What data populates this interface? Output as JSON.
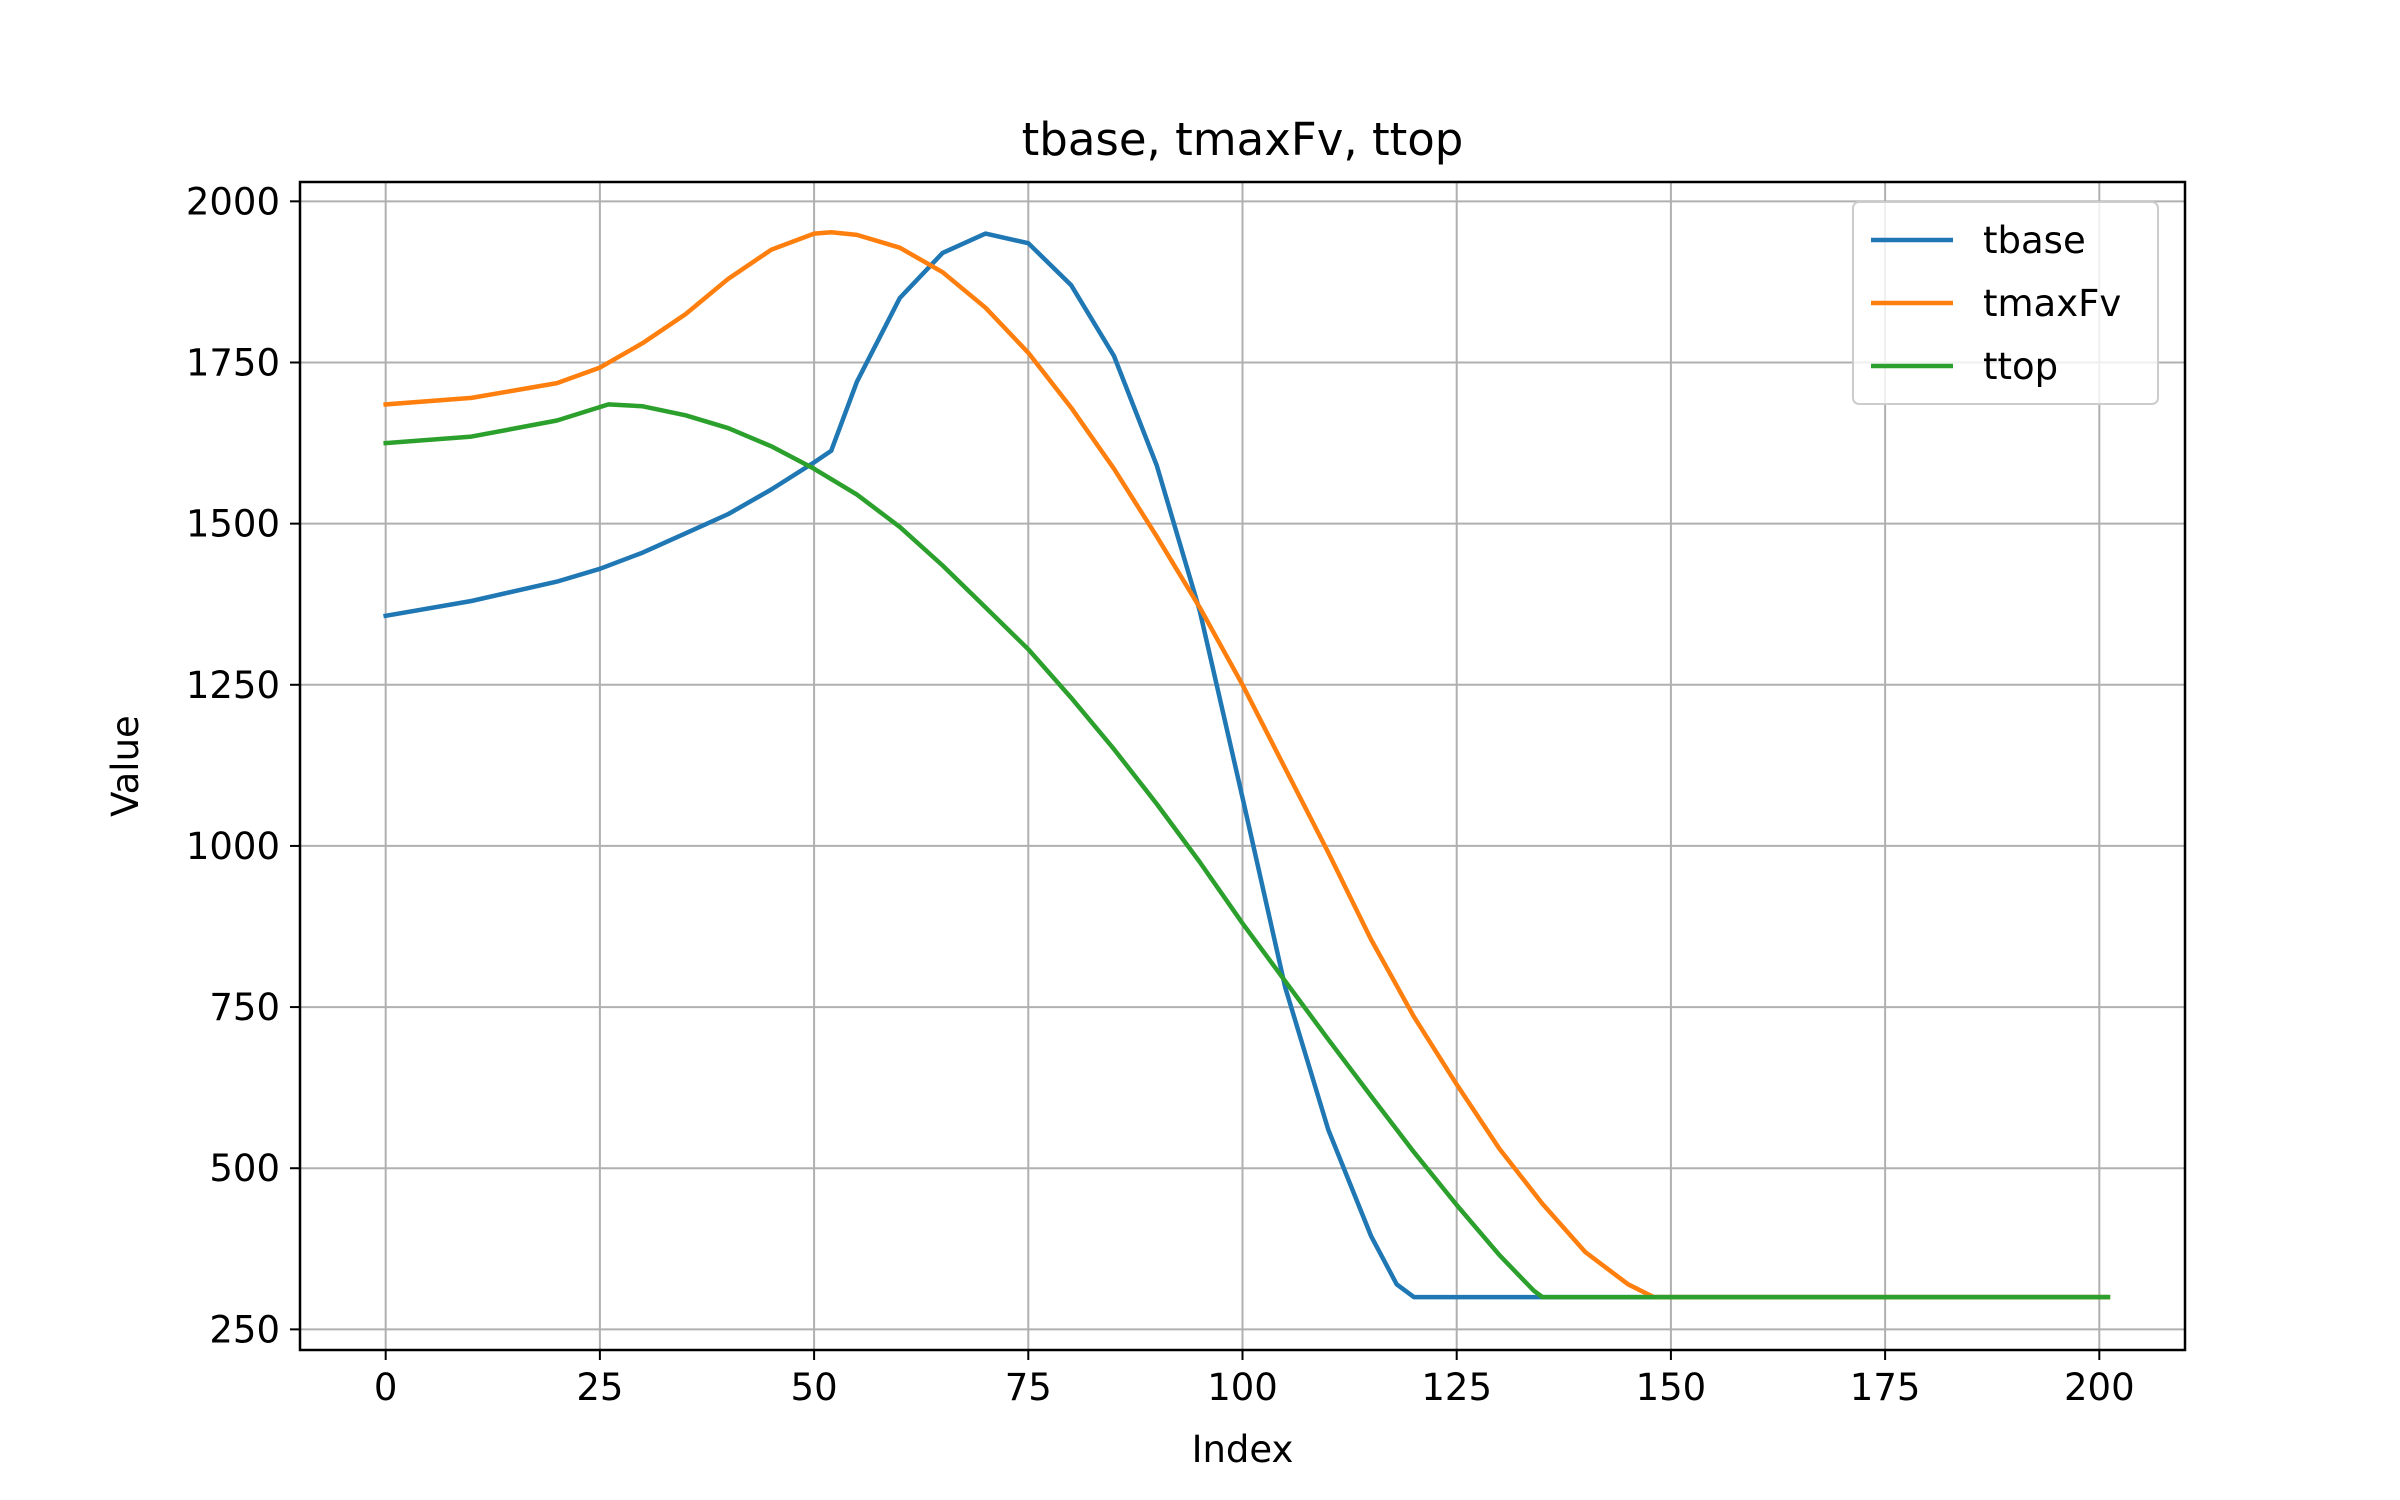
{
  "chart_data": {
    "type": "line",
    "title": "tbase, tmaxFv, ttop",
    "xlabel": "Index",
    "ylabel": "Value",
    "xlim": [
      -10,
      210
    ],
    "ylim": [
      218,
      2030
    ],
    "xticks": [
      0,
      25,
      50,
      75,
      100,
      125,
      150,
      175,
      200
    ],
    "yticks": [
      250,
      500,
      750,
      1000,
      1250,
      1500,
      1750,
      2000
    ],
    "grid": true,
    "legend_position": "upper right",
    "series": [
      {
        "name": "tbase",
        "color": "#1f77b4",
        "points": [
          [
            0,
            1357
          ],
          [
            10,
            1380
          ],
          [
            20,
            1410
          ],
          [
            25,
            1430
          ],
          [
            30,
            1455
          ],
          [
            35,
            1485
          ],
          [
            40,
            1515
          ],
          [
            45,
            1553
          ],
          [
            50,
            1595
          ],
          [
            52,
            1613
          ],
          [
            55,
            1720
          ],
          [
            60,
            1850
          ],
          [
            65,
            1920
          ],
          [
            70,
            1950
          ],
          [
            75,
            1935
          ],
          [
            80,
            1870
          ],
          [
            85,
            1760
          ],
          [
            90,
            1590
          ],
          [
            95,
            1365
          ],
          [
            100,
            1075
          ],
          [
            105,
            780
          ],
          [
            110,
            560
          ],
          [
            115,
            395
          ],
          [
            118,
            320
          ],
          [
            120,
            300
          ],
          [
            130,
            300
          ],
          [
            140,
            300
          ],
          [
            160,
            300
          ],
          [
            180,
            300
          ],
          [
            200,
            300
          ],
          [
            201,
            300
          ]
        ]
      },
      {
        "name": "tmaxFv",
        "color": "#ff7f0e",
        "points": [
          [
            0,
            1685
          ],
          [
            10,
            1695
          ],
          [
            20,
            1718
          ],
          [
            25,
            1742
          ],
          [
            30,
            1780
          ],
          [
            35,
            1825
          ],
          [
            40,
            1880
          ],
          [
            45,
            1925
          ],
          [
            50,
            1950
          ],
          [
            52,
            1952
          ],
          [
            55,
            1948
          ],
          [
            60,
            1928
          ],
          [
            65,
            1890
          ],
          [
            70,
            1835
          ],
          [
            75,
            1765
          ],
          [
            80,
            1680
          ],
          [
            85,
            1585
          ],
          [
            90,
            1480
          ],
          [
            95,
            1370
          ],
          [
            100,
            1250
          ],
          [
            105,
            1120
          ],
          [
            110,
            990
          ],
          [
            115,
            855
          ],
          [
            120,
            735
          ],
          [
            125,
            630
          ],
          [
            130,
            530
          ],
          [
            135,
            445
          ],
          [
            140,
            370
          ],
          [
            145,
            320
          ],
          [
            148,
            300
          ],
          [
            160,
            300
          ],
          [
            180,
            300
          ],
          [
            200,
            300
          ],
          [
            201,
            300
          ]
        ]
      },
      {
        "name": "ttop",
        "color": "#2ca02c",
        "points": [
          [
            0,
            1625
          ],
          [
            10,
            1635
          ],
          [
            20,
            1660
          ],
          [
            26,
            1685
          ],
          [
            30,
            1682
          ],
          [
            35,
            1668
          ],
          [
            40,
            1648
          ],
          [
            45,
            1620
          ],
          [
            50,
            1585
          ],
          [
            55,
            1545
          ],
          [
            60,
            1495
          ],
          [
            65,
            1435
          ],
          [
            70,
            1370
          ],
          [
            75,
            1305
          ],
          [
            80,
            1230
          ],
          [
            85,
            1150
          ],
          [
            90,
            1065
          ],
          [
            95,
            975
          ],
          [
            100,
            880
          ],
          [
            105,
            790
          ],
          [
            110,
            700
          ],
          [
            115,
            612
          ],
          [
            120,
            525
          ],
          [
            125,
            443
          ],
          [
            130,
            365
          ],
          [
            134,
            310
          ],
          [
            135,
            300
          ],
          [
            150,
            300
          ],
          [
            170,
            300
          ],
          [
            200,
            300
          ],
          [
            201,
            300
          ]
        ]
      }
    ]
  }
}
